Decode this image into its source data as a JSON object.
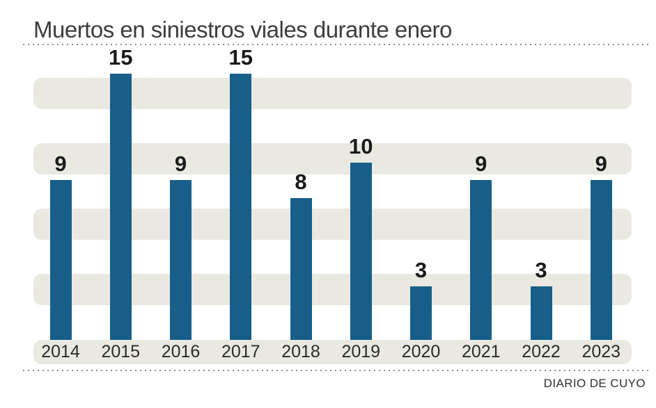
{
  "header": {
    "title": "Muertos en siniestros viales durante enero"
  },
  "footer": {
    "source": "DIARIO DE CUYO"
  },
  "colors": {
    "bar": "#175e89",
    "band": "#eae9e1",
    "title_text": "#3d3d3d",
    "value_label": "#1a1a1a",
    "axis_label": "#2b2b2b",
    "dotted_rule": "#8c8c8c",
    "background": "#ffffff"
  },
  "chart_data": {
    "type": "bar",
    "title": "Muertos en siniestros viales durante enero",
    "categories": [
      "2014",
      "2015",
      "2016",
      "2017",
      "2018",
      "2019",
      "2020",
      "2021",
      "2022",
      "2023"
    ],
    "values": [
      9,
      15,
      9,
      15,
      8,
      10,
      3,
      9,
      3,
      9
    ],
    "xlabel": "",
    "ylabel": "",
    "ylim": [
      0,
      15.5
    ],
    "grid": "horizontal-striped-bands",
    "legend": "none",
    "data_labels": true,
    "bar_color": "#175e89",
    "source": "DIARIO DE CUYO"
  }
}
